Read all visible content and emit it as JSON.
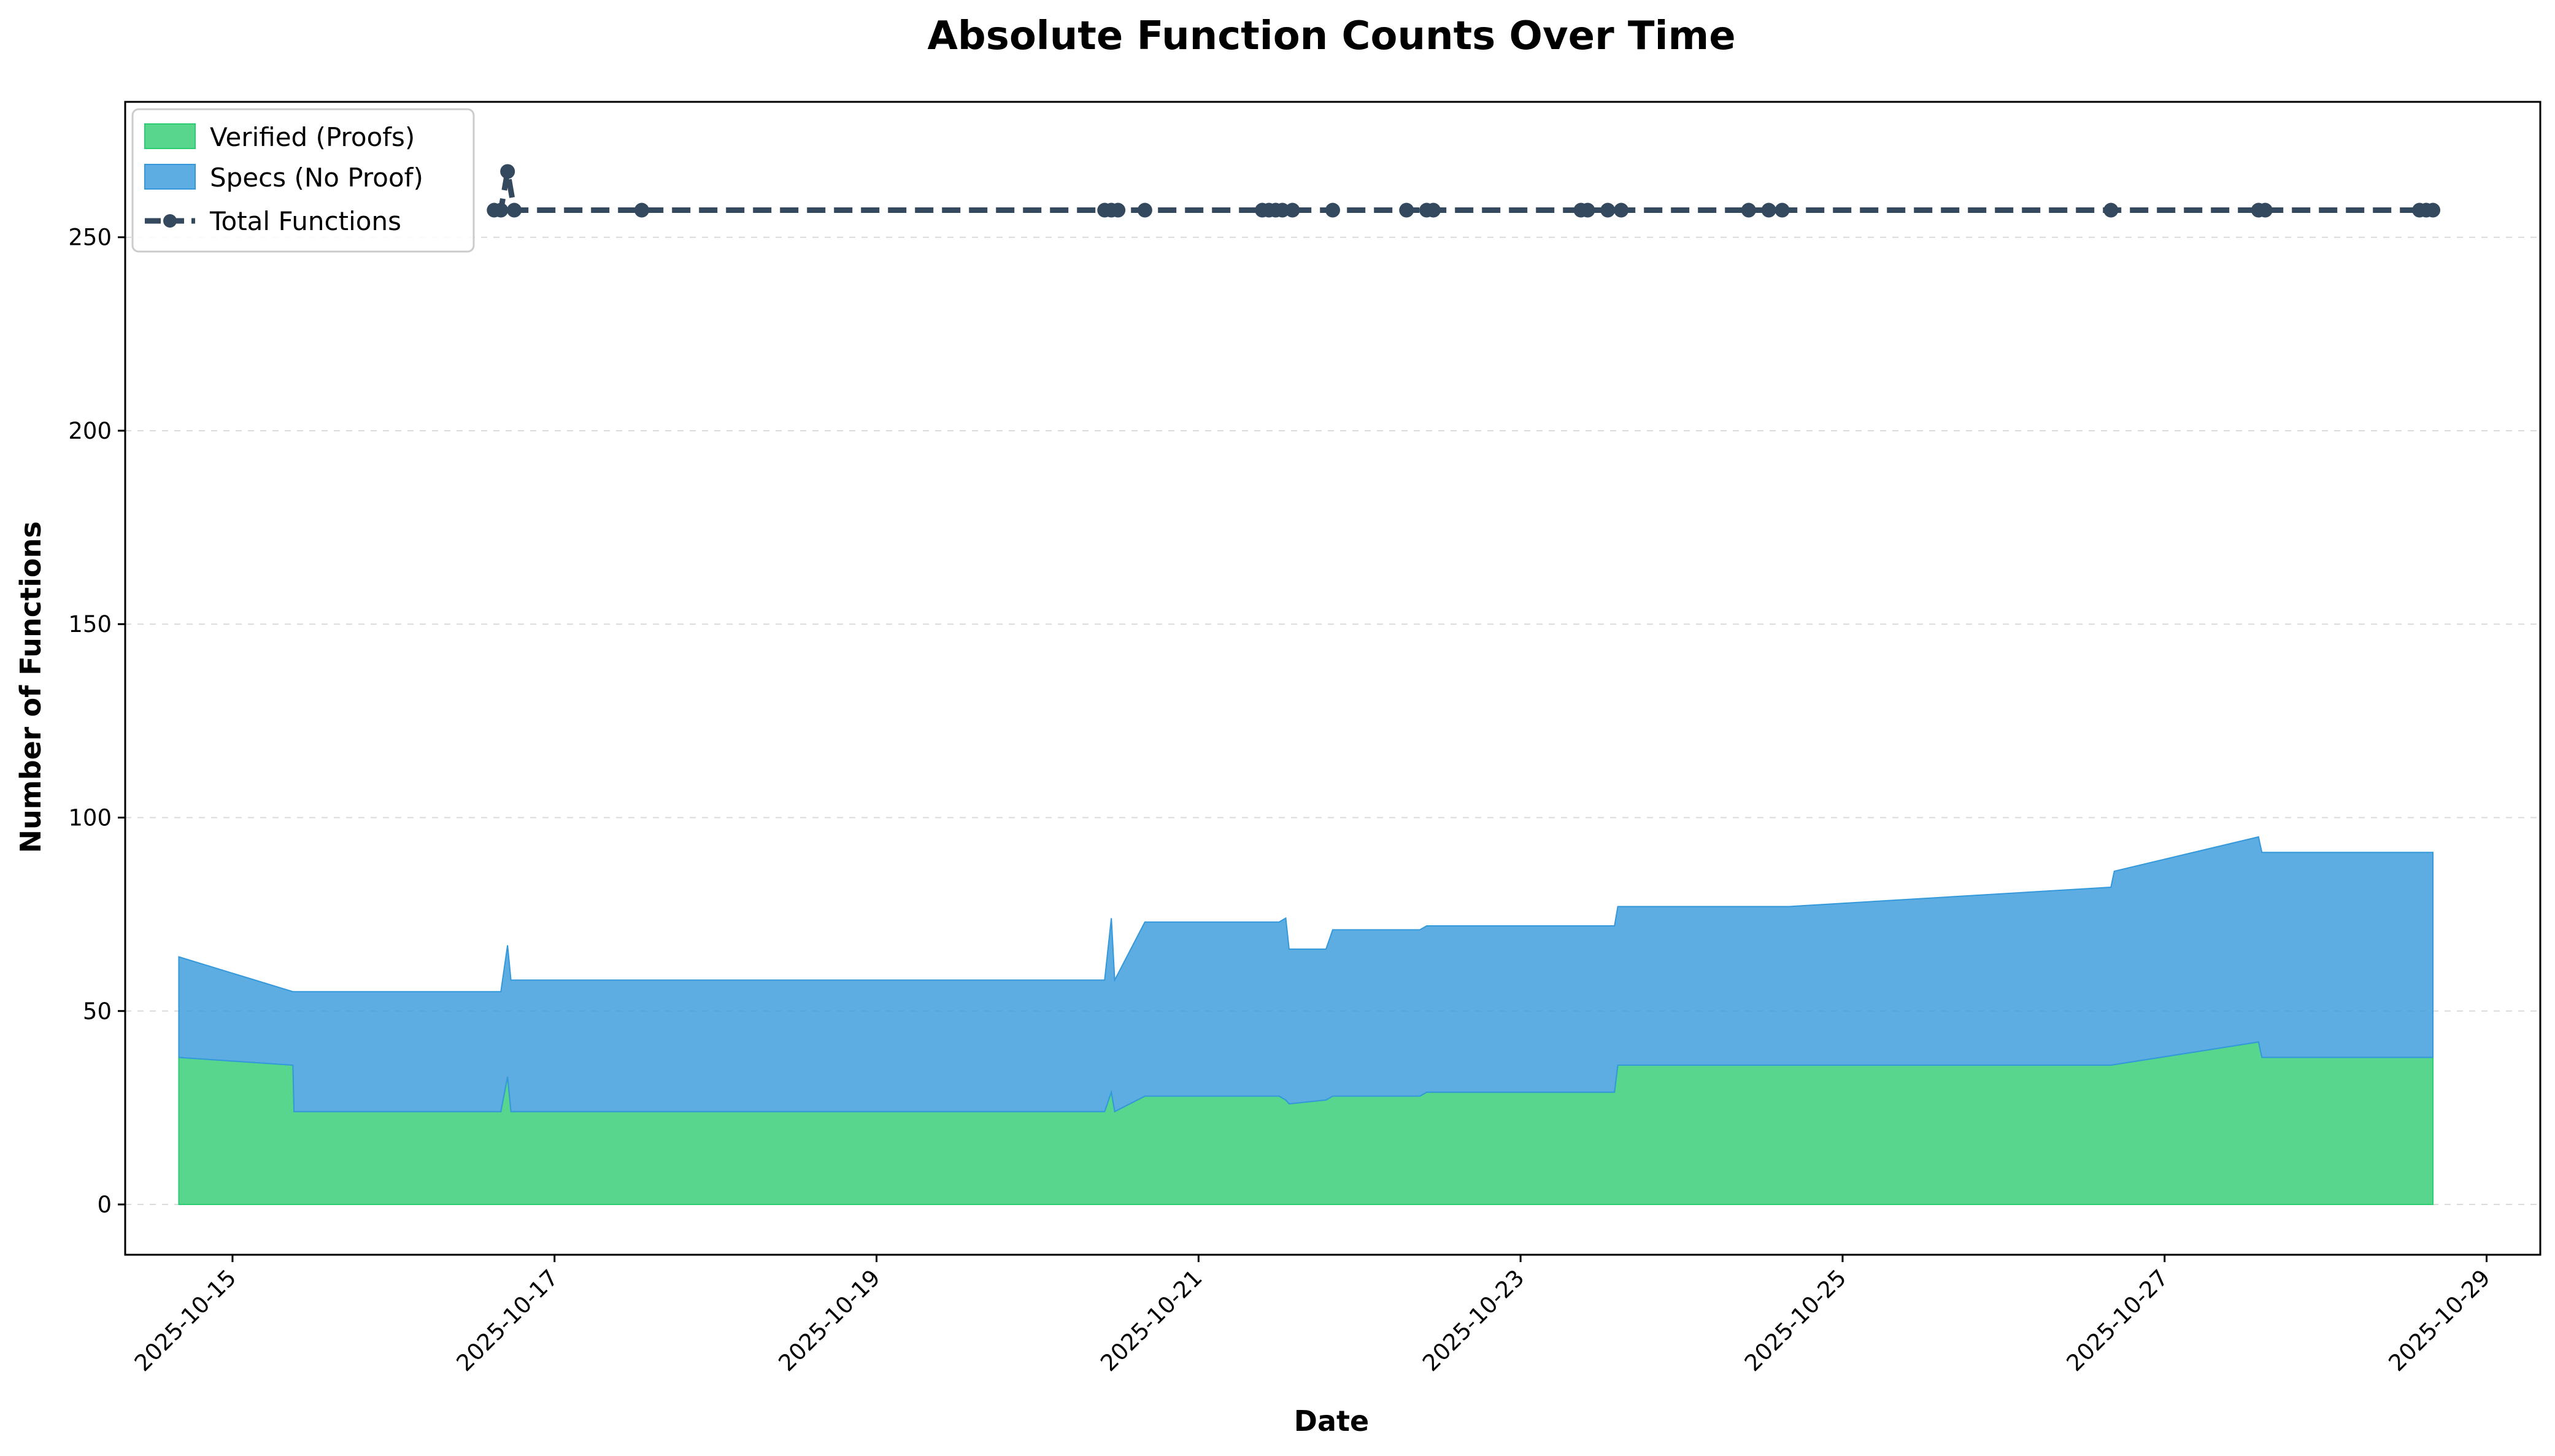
{
  "chart_data": {
    "type": "area",
    "title": "Absolute Function Counts Over Time",
    "xlabel": "Date",
    "ylabel": "Number of Functions",
    "xlim": [
      "2025-10-14T08:00",
      "2025-10-29T08:00"
    ],
    "ylim": [
      -13,
      285
    ],
    "x_ticks": [
      "2025-10-15",
      "2025-10-17",
      "2025-10-19",
      "2025-10-21",
      "2025-10-23",
      "2025-10-25",
      "2025-10-27",
      "2025-10-29"
    ],
    "y_ticks": [
      0,
      50,
      100,
      150,
      200,
      250
    ],
    "grid": "horizontal dashed",
    "legend_position": "top-left",
    "stacked_series": [
      {
        "name": "Verified (Proofs)",
        "color": "#2ecc71",
        "x": [
          "2025-10-14T16:00",
          "2025-10-15T09:00",
          "2025-10-15T09:10",
          "2025-10-16T16:00",
          "2025-10-16T17:00",
          "2025-10-16T17:30",
          "2025-10-20T10:00",
          "2025-10-20T11:00",
          "2025-10-20T11:30",
          "2025-10-20T16:00",
          "2025-10-21T12:00",
          "2025-10-21T13:00",
          "2025-10-21T13:30",
          "2025-10-21T19:00",
          "2025-10-21T20:00",
          "2025-10-22T09:00",
          "2025-10-22T10:00",
          "2025-10-23T14:00",
          "2025-10-23T14:30",
          "2025-10-26T16:00",
          "2025-10-27T14:00",
          "2025-10-27T14:30",
          "2025-10-28T16:00"
        ],
        "values": [
          38,
          36,
          24,
          24,
          33,
          24,
          24,
          29,
          24,
          28,
          28,
          27,
          26,
          27,
          28,
          28,
          29,
          29,
          36,
          36,
          42,
          38,
          38
        ]
      },
      {
        "name": "Specs (No Proof)",
        "color": "#3498db",
        "x": [
          "2025-10-14T16:00",
          "2025-10-15T09:00",
          "2025-10-15T09:10",
          "2025-10-16T16:00",
          "2025-10-16T17:00",
          "2025-10-16T17:30",
          "2025-10-20T10:00",
          "2025-10-20T11:00",
          "2025-10-20T11:30",
          "2025-10-20T16:00",
          "2025-10-21T12:00",
          "2025-10-21T13:00",
          "2025-10-21T13:30",
          "2025-10-21T19:00",
          "2025-10-21T20:00",
          "2025-10-22T09:00",
          "2025-10-22T10:00",
          "2025-10-23T14:00",
          "2025-10-23T14:30",
          "2025-10-24T16:00",
          "2025-10-26T16:00",
          "2025-10-26T16:30",
          "2025-10-27T14:00",
          "2025-10-27T14:30",
          "2025-10-28T16:00"
        ],
        "values": [
          26,
          19,
          31,
          31,
          34,
          34,
          34,
          45,
          34,
          45,
          45,
          47,
          40,
          39,
          43,
          43,
          43,
          43,
          41,
          41,
          46,
          50,
          53,
          53,
          53
        ]
      }
    ],
    "line_series": {
      "name": "Total Functions",
      "color": "#34495e",
      "style": "dashed",
      "marker": "circle",
      "x": [
        "2025-10-16T15:00",
        "2025-10-16T16:00",
        "2025-10-16T17:00",
        "2025-10-16T18:00",
        "2025-10-17T13:00",
        "2025-10-20T10:00",
        "2025-10-20T11:00",
        "2025-10-20T12:00",
        "2025-10-20T16:00",
        "2025-10-21T09:30",
        "2025-10-21T10:30",
        "2025-10-21T11:30",
        "2025-10-21T12:30",
        "2025-10-21T14:00",
        "2025-10-21T20:00",
        "2025-10-22T07:00",
        "2025-10-22T10:00",
        "2025-10-22T11:00",
        "2025-10-23T09:00",
        "2025-10-23T10:00",
        "2025-10-23T13:00",
        "2025-10-23T15:00",
        "2025-10-24T10:00",
        "2025-10-24T13:00",
        "2025-10-24T15:00",
        "2025-10-26T16:00",
        "2025-10-27T14:00",
        "2025-10-27T15:00",
        "2025-10-28T14:00",
        "2025-10-28T15:00",
        "2025-10-28T16:00"
      ],
      "values": [
        257,
        257,
        267,
        257,
        257,
        257,
        257,
        257,
        257,
        257,
        257,
        257,
        257,
        257,
        257,
        257,
        257,
        257,
        257,
        257,
        257,
        257,
        257,
        257,
        257,
        257,
        257,
        257,
        257,
        257,
        257
      ]
    }
  }
}
